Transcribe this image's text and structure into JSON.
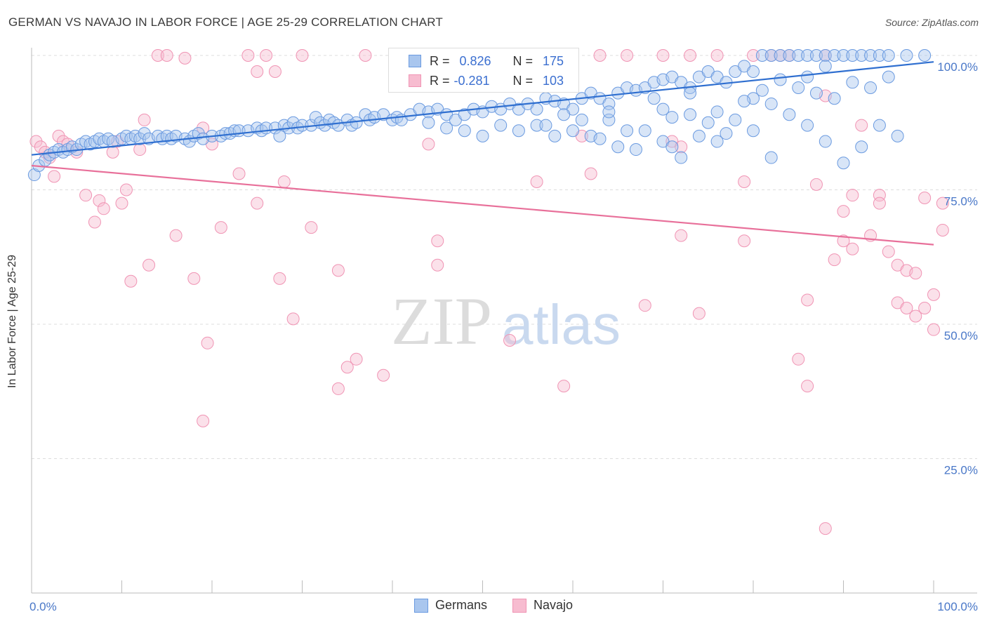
{
  "title": "GERMAN VS NAVAJO IN LABOR FORCE | AGE 25-29 CORRELATION CHART",
  "source": "Source: ZipAtlas.com",
  "watermark": {
    "zip": "ZIP",
    "atlas": "atlas"
  },
  "stats": {
    "germans": {
      "r_label": "R =",
      "r": "0.826",
      "n_label": "N =",
      "n": "175"
    },
    "navajo": {
      "r_label": "R =",
      "r": "-0.281",
      "n_label": "N =",
      "n": "103"
    }
  },
  "legend": {
    "germans": "Germans",
    "navajo": "Navajo"
  },
  "colors": {
    "germans_fill": "#a9c6ee",
    "germans_stroke": "#6a9ae0",
    "germans_line": "#2f6fd0",
    "navajo_fill": "#f7bcd0",
    "navajo_stroke": "#f094b4",
    "navajo_line": "#e8709a",
    "axis_text": "#4a78c8",
    "grid": "#dddddd"
  },
  "chart_data": {
    "type": "scatter",
    "title": "GERMAN VS NAVAJO IN LABOR FORCE | AGE 25-29 CORRELATION CHART",
    "xlabel": "",
    "ylabel": "In Labor Force | Age 25-29",
    "xlim": [
      0,
      100
    ],
    "ylim": [
      0,
      100
    ],
    "x_tick_labels": [
      "0.0%",
      "100.0%"
    ],
    "y_tick_labels": [
      "25.0%",
      "50.0%",
      "75.0%",
      "100.0%"
    ],
    "y_ticks": [
      25,
      50,
      75,
      100
    ],
    "grid": "horizontal dashed",
    "legend_position": "bottom-center",
    "series": [
      {
        "name": "Germans",
        "trend": {
          "x": [
            0,
            100
          ],
          "y": [
            81.5,
            98.8
          ]
        },
        "points": [
          [
            0.3,
            77.8
          ],
          [
            0.8,
            79.5
          ],
          [
            1.5,
            80.5
          ],
          [
            2,
            81.5
          ],
          [
            2.5,
            82
          ],
          [
            3,
            82.5
          ],
          [
            3.5,
            82
          ],
          [
            4,
            82.5
          ],
          [
            4.5,
            83
          ],
          [
            5,
            82.5
          ],
          [
            5.5,
            83.5
          ],
          [
            6,
            84
          ],
          [
            6.5,
            83.5
          ],
          [
            7,
            84
          ],
          [
            7.5,
            84.5
          ],
          [
            8,
            84
          ],
          [
            8.5,
            84.5
          ],
          [
            9,
            84
          ],
          [
            10,
            84.5
          ],
          [
            10.5,
            85
          ],
          [
            11,
            84.5
          ],
          [
            11.5,
            85
          ],
          [
            12,
            84.5
          ],
          [
            12.5,
            85.5
          ],
          [
            13,
            84.5
          ],
          [
            14,
            85
          ],
          [
            14.5,
            84.5
          ],
          [
            15,
            85
          ],
          [
            15.5,
            84.5
          ],
          [
            16,
            85
          ],
          [
            17,
            84.5
          ],
          [
            17.5,
            84
          ],
          [
            18,
            85
          ],
          [
            18.5,
            85.5
          ],
          [
            19,
            84.5
          ],
          [
            20,
            85
          ],
          [
            21,
            85
          ],
          [
            21.5,
            85.5
          ],
          [
            22,
            85.5
          ],
          [
            22.5,
            86
          ],
          [
            23,
            86
          ],
          [
            24,
            86
          ],
          [
            25,
            86.5
          ],
          [
            25.5,
            86
          ],
          [
            26,
            86.5
          ],
          [
            27,
            86.5
          ],
          [
            27.5,
            85
          ],
          [
            28,
            87
          ],
          [
            28.5,
            86.5
          ],
          [
            29,
            87.5
          ],
          [
            29.5,
            86.5
          ],
          [
            30,
            87
          ],
          [
            31,
            87
          ],
          [
            31.5,
            88.5
          ],
          [
            32,
            87.5
          ],
          [
            32.5,
            87
          ],
          [
            33,
            88
          ],
          [
            33.5,
            87.5
          ],
          [
            34,
            87
          ],
          [
            35,
            88
          ],
          [
            35.5,
            87
          ],
          [
            36,
            87.5
          ],
          [
            37,
            89
          ],
          [
            37.5,
            88
          ],
          [
            38,
            88.5
          ],
          [
            39,
            89
          ],
          [
            40,
            88
          ],
          [
            40.5,
            88.5
          ],
          [
            41,
            88
          ],
          [
            42,
            89
          ],
          [
            43,
            90
          ],
          [
            44,
            89.5
          ],
          [
            45,
            90
          ],
          [
            46,
            89
          ],
          [
            47,
            88
          ],
          [
            48,
            89
          ],
          [
            49,
            90
          ],
          [
            50,
            89.5
          ],
          [
            51,
            90.5
          ],
          [
            52,
            90
          ],
          [
            53,
            91
          ],
          [
            54,
            90
          ],
          [
            55,
            91
          ],
          [
            56,
            90
          ],
          [
            57,
            92
          ],
          [
            58,
            91.5
          ],
          [
            59,
            91
          ],
          [
            60,
            90
          ],
          [
            61,
            92
          ],
          [
            62,
            93
          ],
          [
            63,
            92
          ],
          [
            64,
            91
          ],
          [
            65,
            93
          ],
          [
            66,
            94
          ],
          [
            67,
            93.5
          ],
          [
            68,
            94
          ],
          [
            69,
            95
          ],
          [
            70,
            95.5
          ],
          [
            71,
            96
          ],
          [
            72,
            95
          ],
          [
            73,
            94
          ],
          [
            74,
            96
          ],
          [
            75,
            97
          ],
          [
            76,
            96
          ],
          [
            77,
            95
          ],
          [
            78,
            97
          ],
          [
            79,
            98
          ],
          [
            80,
            97
          ],
          [
            81,
            100
          ],
          [
            82,
            100
          ],
          [
            83,
            100
          ],
          [
            84,
            100
          ],
          [
            85,
            100
          ],
          [
            86,
            100
          ],
          [
            87,
            100
          ],
          [
            88,
            100
          ],
          [
            89,
            100
          ],
          [
            90,
            100
          ],
          [
            91,
            100
          ],
          [
            92,
            100
          ],
          [
            93,
            100
          ],
          [
            94,
            100
          ],
          [
            95,
            100
          ],
          [
            97,
            100
          ],
          [
            99,
            100
          ],
          [
            60,
            86
          ],
          [
            62,
            85
          ],
          [
            65,
            83
          ],
          [
            68,
            86
          ],
          [
            70,
            84
          ],
          [
            72,
            81
          ],
          [
            74,
            85
          ],
          [
            76,
            84
          ],
          [
            78,
            88
          ],
          [
            80,
            86
          ],
          [
            82,
            81
          ],
          [
            84,
            89
          ],
          [
            86,
            87
          ],
          [
            88,
            84
          ],
          [
            90,
            80
          ],
          [
            92,
            83
          ],
          [
            94,
            87
          ],
          [
            96,
            85
          ],
          [
            56,
            87
          ],
          [
            52,
            87
          ],
          [
            48,
            86
          ],
          [
            58,
            85
          ],
          [
            64,
            88
          ],
          [
            66,
            86
          ],
          [
            70,
            90
          ],
          [
            73,
            89
          ],
          [
            76,
            89.5
          ],
          [
            80,
            92
          ],
          [
            82,
            91
          ],
          [
            85,
            94
          ],
          [
            87,
            93
          ],
          [
            89,
            92
          ],
          [
            91,
            95
          ],
          [
            93,
            94
          ],
          [
            95,
            96
          ],
          [
            63,
            84.5
          ],
          [
            67,
            82.5
          ],
          [
            71,
            83
          ],
          [
            75,
            87.5
          ],
          [
            77,
            85.5
          ],
          [
            79,
            91.5
          ],
          [
            81,
            93.5
          ],
          [
            83,
            95.5
          ],
          [
            86,
            96
          ],
          [
            88,
            98
          ],
          [
            44,
            87.5
          ],
          [
            46,
            86.5
          ],
          [
            50,
            85
          ],
          [
            54,
            86
          ],
          [
            57,
            87
          ],
          [
            59,
            89
          ],
          [
            61,
            88
          ],
          [
            64,
            89.5
          ],
          [
            69,
            92
          ],
          [
            71,
            88.5
          ],
          [
            73,
            93
          ]
        ]
      },
      {
        "name": "Navajo",
        "trend": {
          "x": [
            0,
            100
          ],
          "y": [
            79.5,
            64.8
          ]
        },
        "points": [
          [
            0.5,
            84
          ],
          [
            1,
            83
          ],
          [
            1.5,
            82
          ],
          [
            2,
            81
          ],
          [
            2.5,
            77.5
          ],
          [
            3,
            85
          ],
          [
            3.5,
            84
          ],
          [
            4,
            83.5
          ],
          [
            5,
            82
          ],
          [
            6,
            74
          ],
          [
            7,
            69
          ],
          [
            7.5,
            73
          ],
          [
            8,
            71.5
          ],
          [
            9,
            82
          ],
          [
            9.5,
            84
          ],
          [
            10,
            72.5
          ],
          [
            10.5,
            75
          ],
          [
            11,
            58
          ],
          [
            12,
            82.5
          ],
          [
            12.5,
            88
          ],
          [
            13,
            61
          ],
          [
            14,
            100
          ],
          [
            15,
            100
          ],
          [
            16,
            66.5
          ],
          [
            17,
            99.5
          ],
          [
            18,
            58.5
          ],
          [
            19,
            86.5
          ],
          [
            19.5,
            46.5
          ],
          [
            19,
            32
          ],
          [
            20,
            83.5
          ],
          [
            21,
            68
          ],
          [
            23,
            78
          ],
          [
            24,
            100
          ],
          [
            25,
            72.5
          ],
          [
            25,
            97
          ],
          [
            26,
            100
          ],
          [
            27,
            97
          ],
          [
            27.5,
            58.5
          ],
          [
            28,
            76.5
          ],
          [
            29,
            51
          ],
          [
            30,
            100
          ],
          [
            31,
            68
          ],
          [
            34,
            60
          ],
          [
            34,
            38
          ],
          [
            35,
            42
          ],
          [
            36,
            43.5
          ],
          [
            37,
            100
          ],
          [
            39,
            40.5
          ],
          [
            41,
            100
          ],
          [
            43,
            100
          ],
          [
            44,
            83.5
          ],
          [
            45,
            65.5
          ],
          [
            45,
            61
          ],
          [
            48,
            100
          ],
          [
            53,
            100
          ],
          [
            53,
            47
          ],
          [
            56,
            76.5
          ],
          [
            58,
            100
          ],
          [
            59,
            38.5
          ],
          [
            61,
            85
          ],
          [
            62,
            78
          ],
          [
            63,
            100
          ],
          [
            66,
            100
          ],
          [
            68,
            53.5
          ],
          [
            70,
            100
          ],
          [
            71,
            84
          ],
          [
            72,
            83
          ],
          [
            72,
            66.5
          ],
          [
            73,
            100
          ],
          [
            74,
            52
          ],
          [
            76,
            100
          ],
          [
            79,
            76.5
          ],
          [
            79,
            65.5
          ],
          [
            80,
            100
          ],
          [
            82,
            100
          ],
          [
            83,
            100
          ],
          [
            84,
            100
          ],
          [
            85,
            43.5
          ],
          [
            86,
            38.5
          ],
          [
            86,
            54.5
          ],
          [
            87,
            76
          ],
          [
            88,
            100
          ],
          [
            88,
            92.5
          ],
          [
            88,
            12
          ],
          [
            89,
            62
          ],
          [
            90,
            71
          ],
          [
            90,
            65.5
          ],
          [
            91,
            74
          ],
          [
            91,
            64
          ],
          [
            92,
            87
          ],
          [
            93,
            66.5
          ],
          [
            94,
            74
          ],
          [
            94,
            72.5
          ],
          [
            95,
            63.5
          ],
          [
            96,
            54
          ],
          [
            96,
            61
          ],
          [
            97,
            60
          ],
          [
            97,
            53
          ],
          [
            98,
            51.5
          ],
          [
            98,
            59.5
          ],
          [
            99,
            53
          ],
          [
            99,
            73.5
          ],
          [
            100,
            55.5
          ],
          [
            100,
            49
          ],
          [
            101,
            67.5
          ],
          [
            101,
            72.5
          ]
        ]
      }
    ]
  }
}
